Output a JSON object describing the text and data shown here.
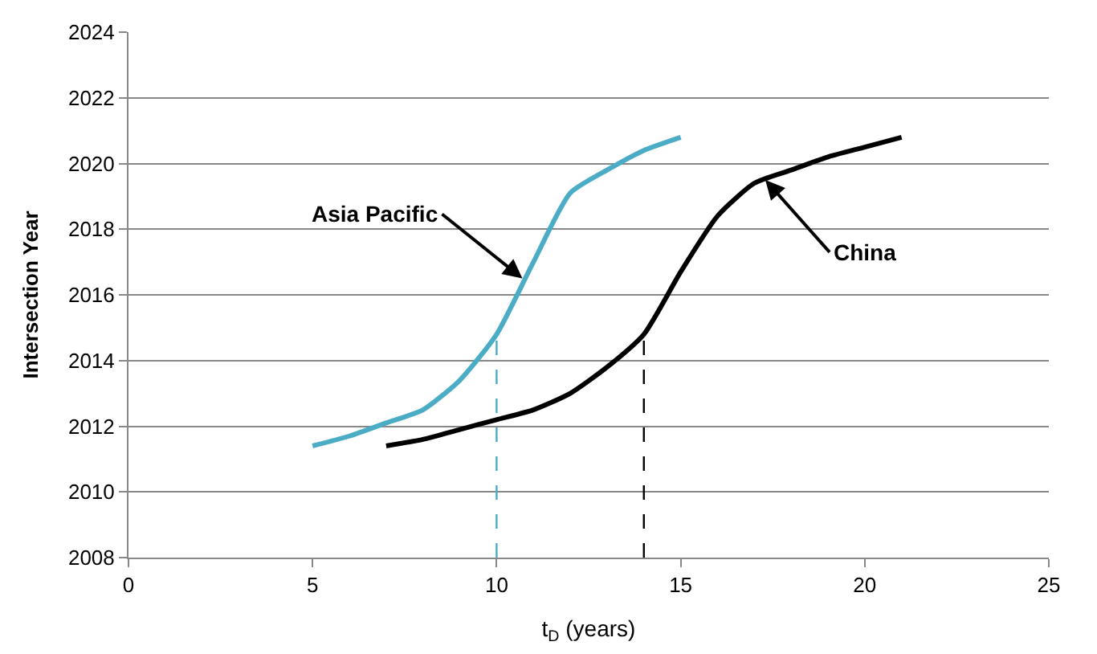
{
  "chart_data": {
    "type": "line",
    "xlabel": "t$_{D}$ (years)",
    "ylabel": "Intersection Year",
    "xlim": [
      0,
      25
    ],
    "xticks": [
      0,
      5,
      10,
      15,
      20,
      25
    ],
    "ylim": [
      2008,
      2024
    ],
    "yticks": [
      2008,
      2010,
      2012,
      2014,
      2016,
      2018,
      2020,
      2022,
      2024
    ],
    "grid": "y",
    "marker": "none",
    "series": [
      {
        "color": "#4bacc6",
        "x": [
          5,
          6,
          7,
          8,
          9,
          10,
          11,
          12,
          13,
          14,
          15
        ],
        "values": [
          2011.4,
          2011.7,
          2012.1,
          2012.5,
          2013.4,
          2014.8,
          2017.0,
          2019.1,
          2019.8,
          2020.4,
          2020.8
        ]
      },
      {
        "color": "#000000",
        "x": [
          7,
          8,
          9,
          10,
          11,
          12,
          13,
          14,
          15,
          16,
          17,
          18,
          19,
          20,
          21
        ],
        "values": [
          2011.4,
          2011.6,
          2011.9,
          2012.2,
          2012.5,
          2013.0,
          2013.8,
          2014.8,
          2016.7,
          2018.4,
          2019.4,
          2019.8,
          2020.2,
          2020.5,
          2020.8
        ]
      },
      {
        "color": "#4bacc6",
        "line_style": "dashed",
        "x": [
          10,
          10
        ],
        "values": [
          2008,
          2014.8
        ]
      },
      {
        "color": "#000000",
        "line_style": "dashed",
        "x": [
          14,
          14
        ],
        "values": [
          2008,
          2014.8
        ]
      }
    ],
    "annotations": [
      {
        "text": "Asia Pacific",
        "x": 10.7,
        "y": 2016.5
      },
      {
        "text": "China",
        "x": 17.3,
        "y": 2019.5
      }
    ]
  }
}
